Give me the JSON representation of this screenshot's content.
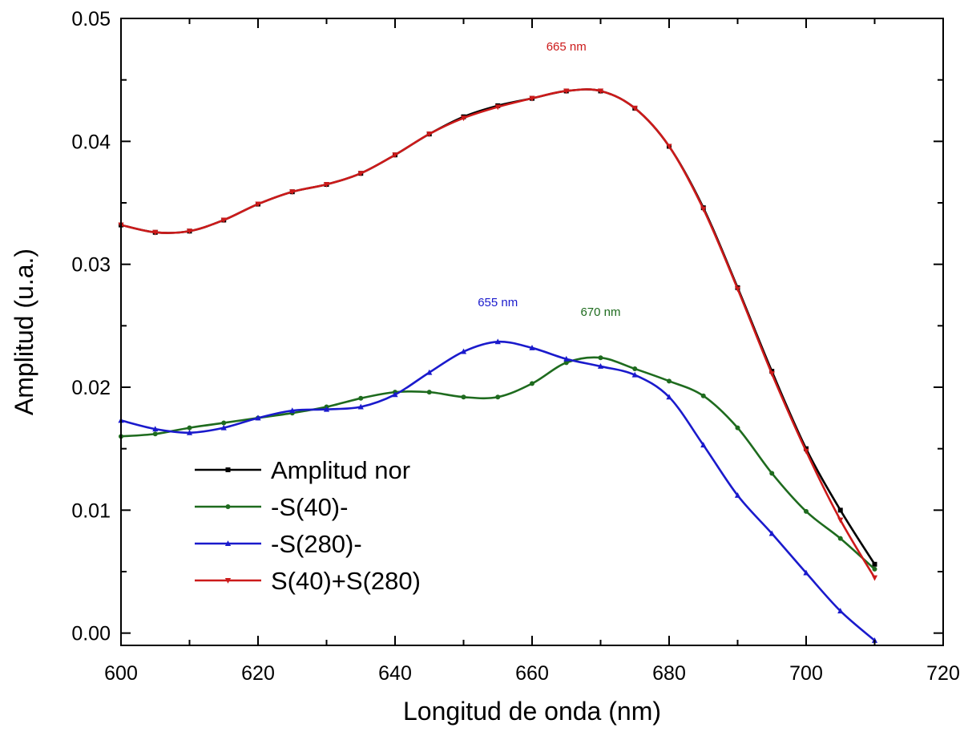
{
  "chart_data": {
    "type": "line",
    "title": "",
    "xlabel": "Longitud de onda (nm)",
    "ylabel": "Amplitud (u.a.)",
    "xlim": [
      600,
      720
    ],
    "ylim": [
      -0.001,
      0.05
    ],
    "xticks": [
      600,
      620,
      640,
      660,
      680,
      700,
      720
    ],
    "xtick_labels": [
      "600",
      "620",
      "640",
      "660",
      "680",
      "700",
      "720"
    ],
    "yticks": [
      0.0,
      0.01,
      0.02,
      0.03,
      0.04,
      0.05
    ],
    "ytick_labels": [
      "0.00",
      "0.01",
      "0.02",
      "0.03",
      "0.04",
      "0.05"
    ],
    "grid": false,
    "legend_position": "lower-left",
    "series": [
      {
        "name": "Amplitud nor",
        "color": "#000000",
        "marker": "square",
        "x": [
          600,
          605,
          610,
          615,
          620,
          625,
          630,
          635,
          640,
          645,
          650,
          655,
          660,
          665,
          670,
          675,
          680,
          685,
          690,
          695,
          700,
          705,
          710
        ],
        "y": [
          0.0332,
          0.0326,
          0.0327,
          0.0336,
          0.0349,
          0.0359,
          0.0365,
          0.0374,
          0.0389,
          0.0406,
          0.042,
          0.0429,
          0.0435,
          0.0441,
          0.0441,
          0.0427,
          0.0396,
          0.0346,
          0.0281,
          0.0213,
          0.015,
          0.01,
          0.0056
        ]
      },
      {
        "name": "-S(40)-",
        "color": "#1e6b1e",
        "marker": "circle",
        "x": [
          600,
          605,
          610,
          615,
          620,
          625,
          630,
          635,
          640,
          645,
          650,
          655,
          660,
          665,
          670,
          675,
          680,
          685,
          690,
          695,
          700,
          705,
          710
        ],
        "y": [
          0.016,
          0.0162,
          0.0167,
          0.0171,
          0.0175,
          0.0179,
          0.0184,
          0.0191,
          0.0196,
          0.0196,
          0.0192,
          0.0192,
          0.0203,
          0.022,
          0.0224,
          0.0215,
          0.0205,
          0.0193,
          0.0167,
          0.013,
          0.0099,
          0.0077,
          0.0052
        ]
      },
      {
        "name": "-S(280)-",
        "color": "#1a1acc",
        "marker": "triangle-up",
        "x": [
          600,
          605,
          610,
          615,
          620,
          625,
          630,
          635,
          640,
          645,
          650,
          655,
          660,
          665,
          670,
          675,
          680,
          685,
          690,
          695,
          700,
          705,
          710
        ],
        "y": [
          0.0173,
          0.0166,
          0.0163,
          0.0167,
          0.0175,
          0.0181,
          0.0182,
          0.0184,
          0.0194,
          0.0212,
          0.0229,
          0.0237,
          0.0232,
          0.0223,
          0.0217,
          0.021,
          0.0192,
          0.0153,
          0.0112,
          0.0081,
          0.0049,
          0.0018,
          -0.0006
        ]
      },
      {
        "name": "S(40)+S(280)",
        "color": "#cc1a1a",
        "marker": "triangle-down",
        "x": [
          600,
          605,
          610,
          615,
          620,
          625,
          630,
          635,
          640,
          645,
          650,
          655,
          660,
          665,
          670,
          675,
          680,
          685,
          690,
          695,
          700,
          705,
          710
        ],
        "y": [
          0.0332,
          0.0326,
          0.0327,
          0.0336,
          0.0349,
          0.0359,
          0.0365,
          0.0374,
          0.0389,
          0.0406,
          0.0419,
          0.0428,
          0.0435,
          0.0441,
          0.0441,
          0.0427,
          0.0396,
          0.0345,
          0.028,
          0.0211,
          0.0148,
          0.0092,
          0.0045
        ]
      }
    ],
    "annotations": [
      {
        "text": "665 nm",
        "x": 665,
        "y": 0.0474,
        "color": "#cc1a1a"
      },
      {
        "text": "655 nm",
        "x": 655,
        "y": 0.0266,
        "color": "#1a1acc"
      },
      {
        "text": "670 nm",
        "x": 670,
        "y": 0.0258,
        "color": "#1e6b1e"
      }
    ]
  }
}
